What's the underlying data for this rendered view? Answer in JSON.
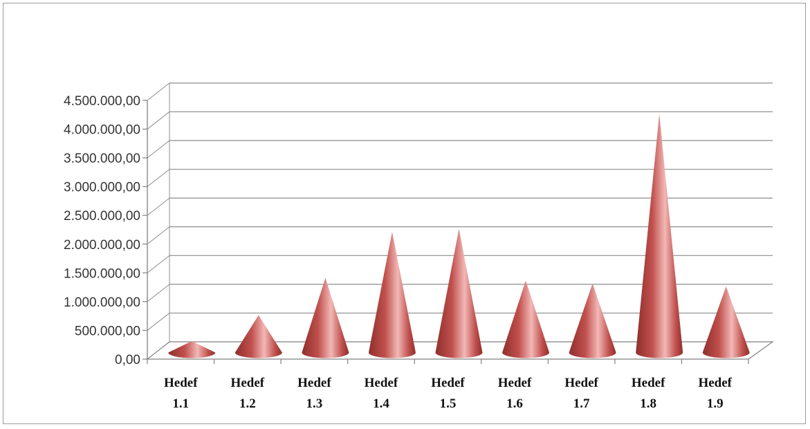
{
  "chart_data": {
    "type": "bar",
    "style": "3d-cone",
    "categories": [
      [
        "Hedef",
        "1.1"
      ],
      [
        "Hedef",
        "1.2"
      ],
      [
        "Hedef",
        "1.3"
      ],
      [
        "Hedef",
        "1.4"
      ],
      [
        "Hedef",
        "1.5"
      ],
      [
        "Hedef",
        "1.6"
      ],
      [
        "Hedef",
        "1.7"
      ],
      [
        "Hedef",
        "1.8"
      ],
      [
        "Hedef",
        "1.9"
      ]
    ],
    "values": [
      150000,
      650000,
      1300000,
      2100000,
      2150000,
      1250000,
      1200000,
      4150000,
      1150000
    ],
    "ylim": [
      0,
      4500000
    ],
    "y_ticks": [
      "0,00",
      "500.000,00",
      "1.000.000,00",
      "1.500.000,00",
      "2.000.000,00",
      "2.500.000,00",
      "3.000.000,00",
      "3.500.000,00",
      "4.000.000,00",
      "4.500.000,00"
    ],
    "grid": true,
    "legend": "none",
    "title": "",
    "xlabel": "",
    "ylabel": "",
    "colors": {
      "cone": "#c0504d",
      "cone_dark": "#8f2f2c",
      "cone_light": "#f2b8b6",
      "gridline": "#8c8c8c",
      "axis": "#808080",
      "floor": "#ffffff"
    }
  }
}
